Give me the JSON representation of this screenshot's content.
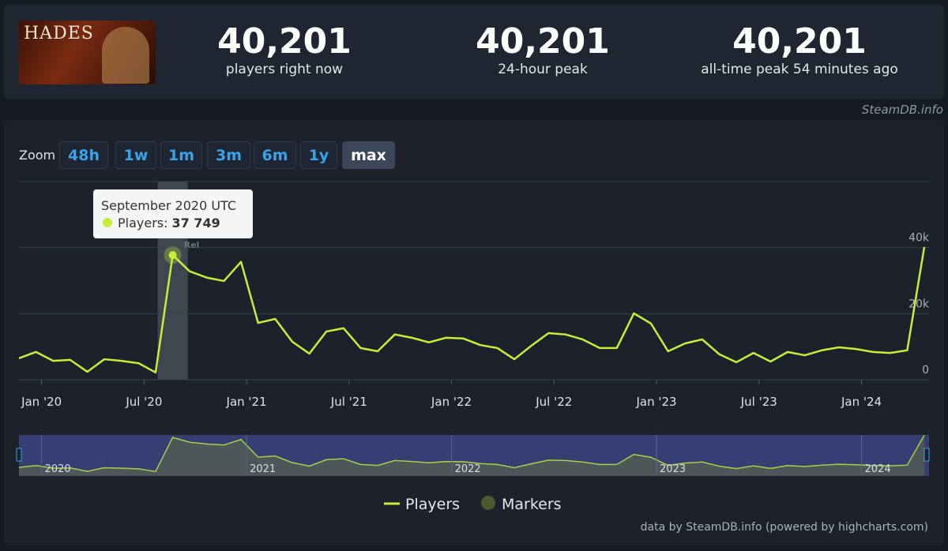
{
  "header": {
    "logo_text": "HADES",
    "stats": [
      {
        "value": "40,201",
        "label": "players right now"
      },
      {
        "value": "40,201",
        "label": "24-hour peak"
      },
      {
        "value": "40,201",
        "label": "all-time peak 54 minutes ago"
      }
    ],
    "watermark": "SteamDB.info"
  },
  "zoom": {
    "label": "Zoom",
    "buttons": [
      "48h",
      "1w",
      "1m",
      "3m",
      "6m",
      "1y",
      "max"
    ],
    "active": "max"
  },
  "chart_data": {
    "type": "line",
    "x": [
      "2019-12",
      "2020-01",
      "2020-02",
      "2020-03",
      "2020-04",
      "2020-05",
      "2020-06",
      "2020-07",
      "2020-08",
      "2020-09",
      "2020-10",
      "2020-11",
      "2020-12",
      "2021-01",
      "2021-02",
      "2021-03",
      "2021-04",
      "2021-05",
      "2021-06",
      "2021-07",
      "2021-08",
      "2021-09",
      "2021-10",
      "2021-11",
      "2021-12",
      "2022-01",
      "2022-02",
      "2022-03",
      "2022-04",
      "2022-05",
      "2022-06",
      "2022-07",
      "2022-08",
      "2022-09",
      "2022-10",
      "2022-11",
      "2022-12",
      "2023-01",
      "2023-02",
      "2023-03",
      "2023-04",
      "2023-05",
      "2023-06",
      "2023-07",
      "2023-08",
      "2023-09",
      "2023-10",
      "2023-11",
      "2023-12",
      "2024-01",
      "2024-02",
      "2024-03",
      "2024-04",
      "2024-05"
    ],
    "series": [
      {
        "name": "Players",
        "color": "#c6ef3a",
        "values": [
          6500,
          8400,
          5700,
          6000,
          2400,
          6200,
          5700,
          5000,
          2200,
          37749,
          32800,
          30900,
          29900,
          35700,
          17200,
          18400,
          11500,
          7900,
          14600,
          15600,
          9600,
          8600,
          13700,
          12700,
          11300,
          12700,
          12500,
          10500,
          9600,
          6200,
          10300,
          14100,
          13700,
          12200,
          9600,
          9600,
          20100,
          17000,
          8600,
          11000,
          12200,
          7700,
          5300,
          8100,
          5500,
          8400,
          7400,
          8900,
          9800,
          9300,
          8400,
          8100,
          8900,
          40200
        ]
      }
    ],
    "markers_legend": "Markers",
    "marker_label": "Rel",
    "xlim": [
      "2019-12",
      "2024-05"
    ],
    "xticks": [
      {
        "value": "2020-01",
        "label": "Jan '20"
      },
      {
        "value": "2020-07",
        "label": "Jul '20"
      },
      {
        "value": "2021-01",
        "label": "Jan '21"
      },
      {
        "value": "2021-07",
        "label": "Jul '21"
      },
      {
        "value": "2022-01",
        "label": "Jan '22"
      },
      {
        "value": "2022-07",
        "label": "Jul '22"
      },
      {
        "value": "2023-01",
        "label": "Jan '23"
      },
      {
        "value": "2023-07",
        "label": "Jul '23"
      },
      {
        "value": "2024-01",
        "label": "Jan '24"
      }
    ],
    "ylim": [
      0,
      60000
    ],
    "yticks": [
      0,
      {
        "value": 20000,
        "label": "20k"
      },
      {
        "value": 40000,
        "label": "40k"
      }
    ],
    "grid": true,
    "tooltip": {
      "title": "September 2020 UTC",
      "label": "Players:",
      "value_label": "37 749",
      "index": 9
    },
    "navigator_labels": [
      {
        "value": "2020-01",
        "label": "2020"
      },
      {
        "value": "2021-01",
        "label": "2021"
      },
      {
        "value": "2022-01",
        "label": "2022"
      },
      {
        "value": "2023-01",
        "label": "2023"
      },
      {
        "value": "2024-01",
        "label": "2024"
      }
    ]
  },
  "footer": "data by SteamDB.info (powered by highcharts.com)"
}
